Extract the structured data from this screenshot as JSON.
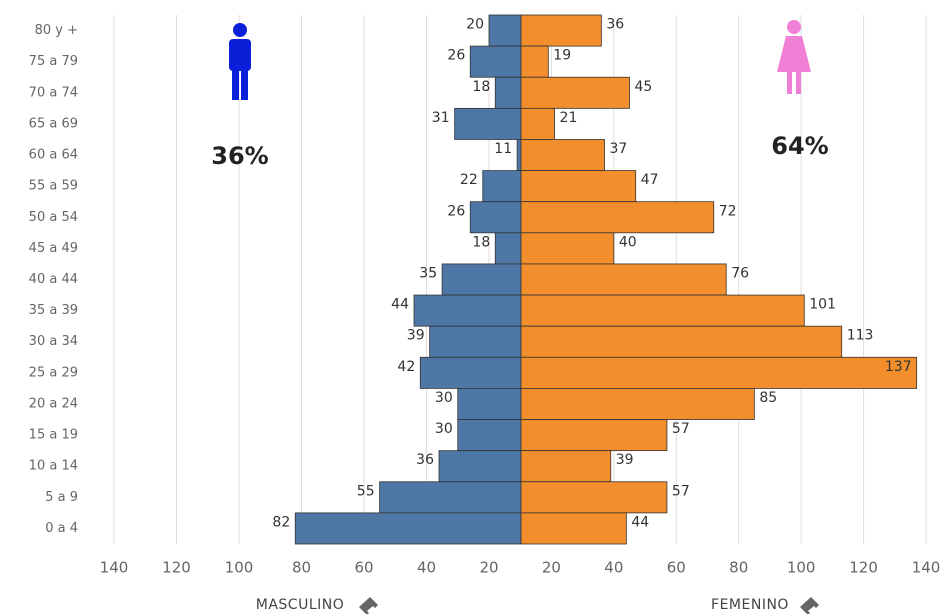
{
  "chart_data": {
    "type": "population-pyramid",
    "categories": [
      "80 y +",
      "75 a 79",
      "70 a 74",
      "65 a 69",
      "60 a 64",
      "55 a 59",
      "50 a 54",
      "45 a 49",
      "40 a 44",
      "35 a 39",
      "30 a 34",
      "25 a 29",
      "20 a 24",
      "15 a 19",
      "10 a 14",
      "5 a 9",
      "0 a 4"
    ],
    "series": [
      {
        "name": "MASCULINO",
        "color": "#4e77a6",
        "annotation": "36%",
        "values": [
          20,
          26,
          18,
          31,
          11,
          22,
          26,
          18,
          35,
          44,
          39,
          42,
          30,
          30,
          36,
          55,
          82
        ],
        "xlim": [
          0,
          140
        ],
        "xticks": [
          20,
          40,
          60,
          80,
          100,
          120,
          140
        ]
      },
      {
        "name": "FEMENINO",
        "color": "#f28e2b",
        "annotation": "64%",
        "values": [
          36,
          19,
          45,
          21,
          37,
          47,
          72,
          40,
          76,
          101,
          113,
          137,
          85,
          57,
          39,
          57,
          44
        ],
        "xlim": [
          0,
          140
        ],
        "xticks": [
          20,
          40,
          60,
          80,
          100,
          120,
          140
        ]
      }
    ],
    "grid": true
  }
}
